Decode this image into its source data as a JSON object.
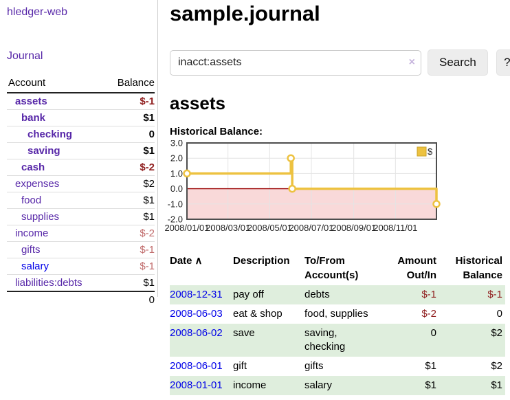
{
  "app": {
    "title": "hledger-web"
  },
  "sidebar": {
    "nav": {
      "journal": "Journal"
    },
    "accounts": {
      "headers": {
        "account": "Account",
        "balance": "Balance"
      },
      "rows": [
        {
          "name": "assets",
          "balance": "$-1"
        },
        {
          "name": "bank",
          "balance": "$1"
        },
        {
          "name": "checking",
          "balance": "0"
        },
        {
          "name": "saving",
          "balance": "$1"
        },
        {
          "name": "cash",
          "balance": "$-2"
        },
        {
          "name": "expenses",
          "balance": "$2"
        },
        {
          "name": "food",
          "balance": "$1"
        },
        {
          "name": "supplies",
          "balance": "$1"
        },
        {
          "name": "income",
          "balance": "$-2"
        },
        {
          "name": "gifts",
          "balance": "$-1"
        },
        {
          "name": "salary",
          "balance": "$-1"
        },
        {
          "name": "liabilities:debts",
          "balance": "$1"
        }
      ],
      "total": "0"
    }
  },
  "main": {
    "title": "sample.journal",
    "search": {
      "value": "inacct:assets",
      "clear_icon": "×",
      "button_label": "Search",
      "help_label": "?"
    },
    "account_heading": "assets",
    "chart_label": "Historical Balance:",
    "register": {
      "headers": {
        "date": "Date",
        "sort_indicator": "∧",
        "description": "Description",
        "tofrom": "To/From Account(s)",
        "amount": "Amount Out/In",
        "balance": "Historical Balance"
      },
      "rows": [
        {
          "date": "2008-12-31",
          "description": "pay off",
          "tofrom": "debts",
          "amount": "$-1",
          "balance": "$-1"
        },
        {
          "date": "2008-06-03",
          "description": "eat & shop",
          "tofrom": "food, supplies",
          "amount": "$-2",
          "balance": "0"
        },
        {
          "date": "2008-06-02",
          "description": "save",
          "tofrom": "saving, checking",
          "amount": "0",
          "balance": "$2"
        },
        {
          "date": "2008-06-01",
          "description": "gift",
          "tofrom": "gifts",
          "amount": "$1",
          "balance": "$2"
        },
        {
          "date": "2008-01-01",
          "description": "income",
          "tofrom": "salary",
          "amount": "$1",
          "balance": "$1"
        }
      ]
    }
  },
  "chart_data": {
    "type": "line",
    "title": "Historical Balance",
    "step": true,
    "series": [
      {
        "name": "$",
        "color": "#edc240",
        "points": [
          [
            "2008-01-01",
            1
          ],
          [
            "2008-06-01",
            2
          ],
          [
            "2008-06-03",
            0
          ],
          [
            "2008-12-31",
            -1
          ]
        ]
      }
    ],
    "x_range": [
      "2008-01-01",
      "2008-12-31"
    ],
    "x_ticks": [
      "2008/01/01",
      "2008/03/01",
      "2008/05/01",
      "2008/07/01",
      "2008/09/01",
      "2008/11/01"
    ],
    "y_ticks": [
      3.0,
      2.0,
      1.0,
      0.0,
      -1.0,
      -2.0
    ],
    "ylim": [
      -2,
      3
    ],
    "grid": true,
    "legend": {
      "position": "top-right",
      "label": "$",
      "swatch_color": "#edc240",
      "swatch_border": "#c9a227"
    },
    "negative_region_color": "#f9d9d9",
    "zero_line_color": "#990000",
    "grid_color": "#e4e4e4",
    "frame_color": "#4d4d4d"
  }
}
